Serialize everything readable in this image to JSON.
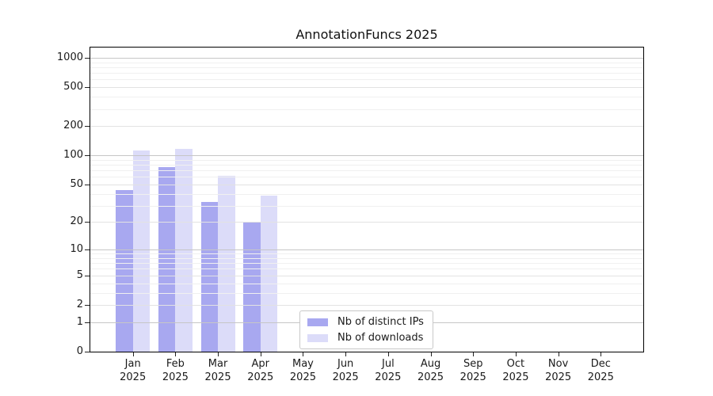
{
  "title": "AnnotationFuncs 2025",
  "colors": {
    "ips_bar": "#a8a8f0",
    "downloads_bar": "#dcdcf9",
    "grid_major": "#c6c6c6",
    "grid_mid": "#e2e2e2",
    "grid_minor": "#f0f0f0",
    "spine": "#000000",
    "text": "#1a1a1a"
  },
  "legend": {
    "items": [
      {
        "label": "Nb of distinct IPs",
        "series": "ips"
      },
      {
        "label": "Nb of downloads",
        "series": "downloads"
      }
    ]
  },
  "chart_data": {
    "type": "bar",
    "title": "AnnotationFuncs 2025",
    "categories": [
      "Jan 2025",
      "Feb 2025",
      "Mar 2025",
      "Apr 2025",
      "May 2025",
      "Jun 2025",
      "Jul 2025",
      "Aug 2025",
      "Sep 2025",
      "Oct 2025",
      "Nov 2025",
      "Dec 2025"
    ],
    "series": [
      {
        "name": "Nb of distinct IPs",
        "values": [
          44,
          75,
          33,
          20,
          0,
          0,
          0,
          0,
          0,
          0,
          0,
          0
        ]
      },
      {
        "name": "Nb of downloads",
        "values": [
          112,
          116,
          61,
          38,
          0,
          0,
          0,
          0,
          0,
          0,
          0,
          0
        ]
      }
    ],
    "xlabel": "",
    "ylabel": "",
    "y_scale": "log10(1+v)",
    "y_ticks": [
      0,
      1,
      2,
      5,
      10,
      20,
      50,
      100,
      200,
      500,
      1000
    ],
    "ylim": [
      0,
      1300
    ],
    "grid": "both",
    "gridlines": {
      "major": [
        1,
        10,
        100,
        1000
      ],
      "mid": [
        2,
        5,
        20,
        50,
        200,
        500
      ],
      "minor": [
        3,
        4,
        6,
        7,
        8,
        9,
        30,
        40,
        60,
        70,
        80,
        90,
        300,
        400,
        600,
        700,
        800,
        900
      ]
    },
    "legend_position": "lower center"
  }
}
